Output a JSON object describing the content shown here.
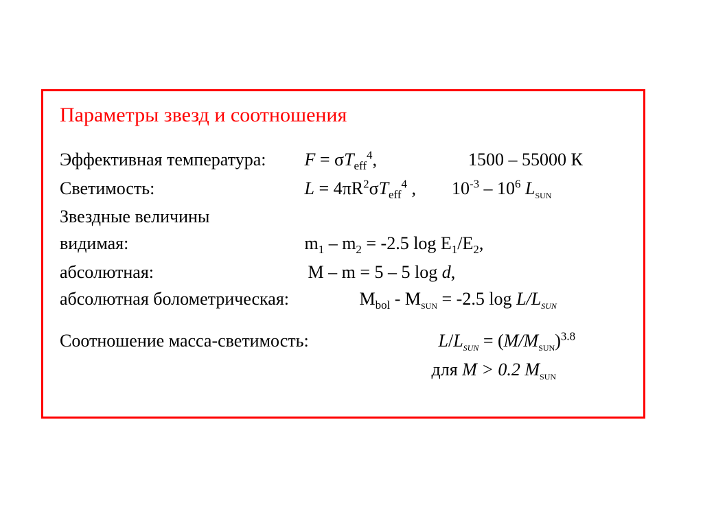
{
  "colors": {
    "border": "#ff0000",
    "title_text": "#ff0000",
    "body_text": "#000000",
    "background": "#ffffff"
  },
  "title": "Параметры звезд и соотношения",
  "rows": {
    "eff_temp": {
      "label": "Эффективная температура:",
      "range": "1500 – 55000 К"
    },
    "luminosity": {
      "label": "Светимость:"
    },
    "magnitudes_header": "Звездные величины",
    "apparent": {
      "label": "видимая:"
    },
    "absolute": {
      "label": "абсолютная:",
      "formula_tail": "M – m = 5 – 5 log "
    },
    "bolometric": {
      "label": "абсолютная болометрическая:"
    },
    "mass_lum": {
      "label": "Соотношение масса-светимость:"
    },
    "condition_prefix": "для "
  }
}
